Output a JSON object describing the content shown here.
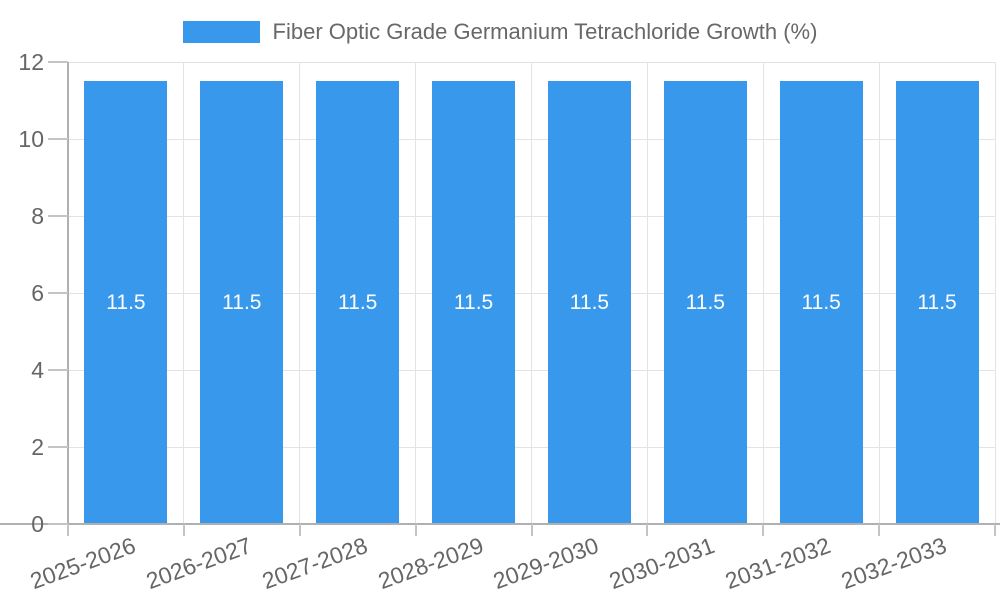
{
  "chart_data": {
    "type": "bar",
    "title": "Fiber Optic Grade Germanium Tetrachloride Growth (%)",
    "categories": [
      "2025-2026",
      "2026-2027",
      "2027-2028",
      "2028-2029",
      "2029-2030",
      "2030-2031",
      "2031-2032",
      "2032-2033"
    ],
    "values": [
      11.5,
      11.5,
      11.5,
      11.5,
      11.5,
      11.5,
      11.5,
      11.5
    ],
    "bar_labels": [
      "11.5",
      "11.5",
      "11.5",
      "11.5",
      "11.5",
      "11.5",
      "11.5",
      "11.5"
    ],
    "xlabel": "",
    "ylabel": "",
    "ylim": [
      0,
      12
    ],
    "yticks": [
      0,
      2,
      4,
      6,
      8,
      10,
      12
    ],
    "grid": true,
    "legend_position": "top",
    "colors": {
      "bar": "#3899EC",
      "grid": "#E3E3E3",
      "axis": "#B0B0B0",
      "tick": "#C4C4C4",
      "text": "#666666",
      "value_text": "#FFFFFF"
    }
  }
}
